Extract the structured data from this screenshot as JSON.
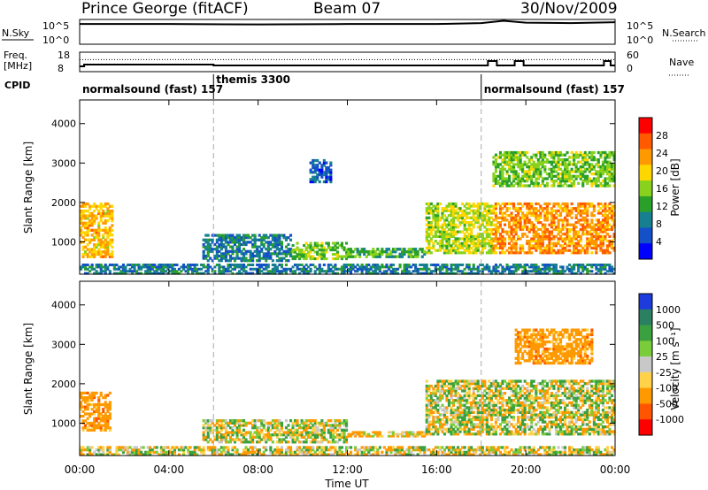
{
  "header": {
    "station": "Prince George (fitACF)",
    "beam": "Beam 07",
    "date": "30/Nov/2009"
  },
  "sky_panel": {
    "left_label": "N.Sky",
    "tick_top": "10^5",
    "tick_bottom": "10^0",
    "right_tick_top": "10^5",
    "right_tick_bottom": "10^0",
    "right_label": "N.Search"
  },
  "freq_panel": {
    "label_line1": "Freq.",
    "label_line2": "[MHz]",
    "tick_top": "18",
    "tick_bottom": "8",
    "right_tick_top": "60",
    "right_tick_bottom": "0",
    "right_label": "Nave"
  },
  "cpid": {
    "label": "CPID",
    "segments": [
      {
        "text": "normalsound (fast) 157",
        "start_hour": 0
      },
      {
        "text": "themis 3300",
        "start_hour": 6
      },
      {
        "text": "normalsound (fast) 157",
        "start_hour": 18
      }
    ]
  },
  "power_panel": {
    "ylabel": "Slant Range [km]",
    "colorbar_label": "Power [dB]",
    "colorbar_ticks": [
      "28",
      "24",
      "20",
      "16",
      "12",
      "8",
      "4"
    ],
    "colorbar_colors": [
      "#ff0000",
      "#ff5a00",
      "#ff9900",
      "#ffd700",
      "#88d21e",
      "#2aa02a",
      "#168090",
      "#1450c8",
      "#0000ff"
    ]
  },
  "velocity_panel": {
    "ylabel": "Slant Range [km]",
    "colorbar_label": "Velocity [m s⁻¹]",
    "colorbar_ticks": [
      "1000",
      "500",
      "100",
      "25",
      "-25",
      "-100",
      "-500",
      "-1000"
    ],
    "colorbar_colors": [
      "#1e3cdc",
      "#2a8060",
      "#3aa040",
      "#7acc3a",
      "#c8c8c8",
      "#ffd24a",
      "#ff9900",
      "#ff5500",
      "#ff0000"
    ]
  },
  "xaxis": {
    "label": "Time UT",
    "ticks": [
      "00:00",
      "04:00",
      "08:00",
      "12:00",
      "16:00",
      "20:00",
      "00:00"
    ]
  },
  "chart_data": [
    {
      "type": "line",
      "title": "N.Sky / N.Search",
      "x_hours": [
        0,
        4,
        8,
        12,
        16,
        18,
        19,
        20,
        22,
        24
      ],
      "nsky_log10": [
        4.2,
        4.2,
        4.1,
        4.2,
        4.2,
        4.4,
        4.9,
        4.5,
        4.4,
        4.6
      ],
      "xlim": [
        0,
        24
      ]
    },
    {
      "type": "line",
      "title": "Freq / Nave",
      "series": [
        {
          "name": "Freq.",
          "x_hours": [
            0,
            0.2,
            5.5,
            6,
            12,
            18,
            18.3,
            18.7,
            19.5,
            19.9,
            23.5,
            23.8,
            24
          ],
          "values": [
            10.5,
            11.5,
            11.5,
            11,
            11,
            11,
            13.5,
            11,
            13.5,
            11,
            13.5,
            11,
            11
          ]
        },
        {
          "name": "Nave",
          "x_hours": [
            0,
            24
          ],
          "values": [
            38,
            38
          ]
        }
      ],
      "xlim": [
        0,
        24
      ]
    },
    {
      "type": "heatmap",
      "title": "Power [dB]",
      "xlabel": "Time UT",
      "ylabel": "Slant Range [km]",
      "xlim": [
        0,
        24
      ],
      "ylim": [
        180,
        4600
      ],
      "yticks": [
        1000,
        2000,
        3000,
        4000
      ],
      "value_range": [
        0,
        30
      ],
      "regions": [
        {
          "t0": 0.0,
          "t1": 1.5,
          "r0": 600,
          "r1": 2000,
          "value": 20
        },
        {
          "t0": 5.5,
          "t1": 9.5,
          "r0": 500,
          "r1": 1200,
          "value": 8
        },
        {
          "t0": 9.5,
          "t1": 12.0,
          "r0": 550,
          "r1": 1000,
          "value": 14
        },
        {
          "t0": 12.0,
          "t1": 15.5,
          "r0": 600,
          "r1": 850,
          "value": 12
        },
        {
          "t0": 15.5,
          "t1": 18.5,
          "r0": 700,
          "r1": 2000,
          "value": 16
        },
        {
          "t0": 18.5,
          "t1": 24.0,
          "r0": 700,
          "r1": 2000,
          "value": 22
        },
        {
          "t0": 18.5,
          "t1": 24.0,
          "r0": 2400,
          "r1": 3300,
          "value": 14
        },
        {
          "t0": 10.3,
          "t1": 11.3,
          "r0": 2500,
          "r1": 3100,
          "value": 6
        },
        {
          "t0": 0.0,
          "t1": 24.0,
          "r0": 180,
          "r1": 450,
          "value": 8
        }
      ]
    },
    {
      "type": "heatmap",
      "title": "Velocity [m s-1]",
      "xlabel": "Time UT",
      "ylabel": "Slant Range [km]",
      "xlim": [
        0,
        24
      ],
      "ylim": [
        180,
        4600
      ],
      "yticks": [
        1000,
        2000,
        3000,
        4000
      ],
      "value_range": [
        -1000,
        1000
      ],
      "regions": [
        {
          "t0": 0.0,
          "t1": 1.4,
          "r0": 800,
          "r1": 1800,
          "value": -300
        },
        {
          "t0": 5.5,
          "t1": 12.0,
          "r0": 500,
          "r1": 1100,
          "value": 0
        },
        {
          "t0": 12.0,
          "t1": 15.5,
          "r0": 650,
          "r1": 800,
          "value": -150
        },
        {
          "t0": 15.5,
          "t1": 24.0,
          "r0": 700,
          "r1": 2100,
          "value": 0
        },
        {
          "t0": 19.5,
          "t1": 23.0,
          "r0": 2500,
          "r1": 3400,
          "value": -300
        },
        {
          "t0": 0.0,
          "t1": 24.0,
          "r0": 180,
          "r1": 420,
          "value": -50
        }
      ]
    }
  ]
}
